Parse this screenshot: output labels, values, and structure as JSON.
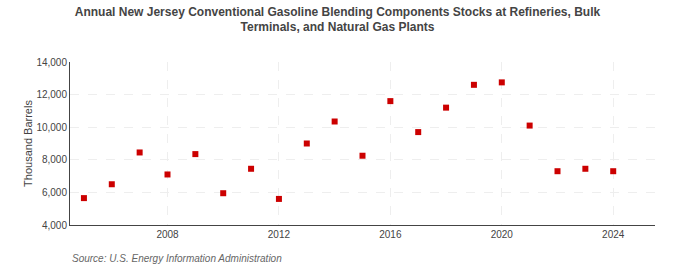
{
  "chart_data": {
    "type": "scatter",
    "title": "Annual New Jersey Conventional Gasoline Blending Components Stocks at Refineries, Bulk\nTerminals, and Natural Gas Plants",
    "ylabel": "Thousand Barrels",
    "annotations": [
      "Source: U.S. Energy Information Administration"
    ],
    "x": [
      2005,
      2006,
      2007,
      2008,
      2009,
      2010,
      2011,
      2012,
      2013,
      2014,
      2015,
      2016,
      2017,
      2018,
      2019,
      2020,
      2021,
      2022,
      2023,
      2024
    ],
    "values": [
      5650,
      6500,
      8450,
      7100,
      8350,
      5950,
      7450,
      5600,
      9000,
      10350,
      8250,
      11600,
      9700,
      11200,
      12600,
      12750,
      10100,
      7300,
      7450,
      7300
    ],
    "color": "#cc0000",
    "marker": "square",
    "xlim": [
      2004.5,
      2025.5
    ],
    "ylim": [
      4000,
      14000
    ],
    "xticks": [
      2008,
      2012,
      2016,
      2020,
      2024
    ],
    "yticks": [
      {
        "value": 4000,
        "label": "4,000"
      },
      {
        "value": 6000,
        "label": "6,000"
      },
      {
        "value": 8000,
        "label": "8,000"
      },
      {
        "value": 10000,
        "label": "10,000"
      },
      {
        "value": 12000,
        "label": "12,000"
      },
      {
        "value": 14000,
        "label": "14,000"
      }
    ],
    "grid": true
  }
}
